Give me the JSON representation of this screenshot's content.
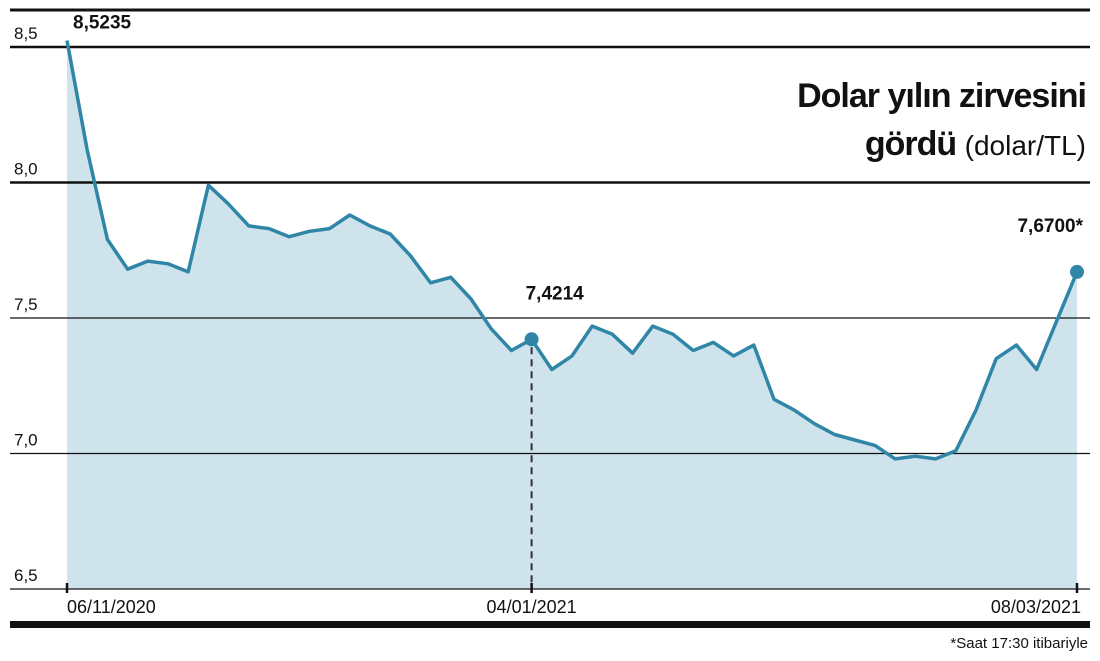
{
  "chart_data": {
    "type": "line",
    "title": "Dolar yılın zirvesini gördü",
    "unit_label": "(dolar/TL)",
    "footnote": "*Saat 17:30 itibariyle",
    "categories": [
      "06/11/2020",
      null,
      null,
      null,
      null,
      null,
      null,
      null,
      null,
      null,
      null,
      null,
      null,
      null,
      null,
      null,
      null,
      null,
      null,
      null,
      null,
      null,
      null,
      "04/01/2021",
      null,
      null,
      null,
      null,
      null,
      null,
      null,
      null,
      null,
      null,
      null,
      null,
      null,
      null,
      null,
      null,
      null,
      null,
      null,
      null,
      null,
      null,
      null,
      null,
      null,
      null,
      "08/03/2021"
    ],
    "series": [
      {
        "name": "Dolar/TL",
        "color": "#2f86a6",
        "values": [
          8.5235,
          8.12,
          7.79,
          7.68,
          7.71,
          7.7,
          7.67,
          7.99,
          7.92,
          7.84,
          7.83,
          7.8,
          7.82,
          7.83,
          7.88,
          7.84,
          7.81,
          7.73,
          7.63,
          7.65,
          7.57,
          7.46,
          7.38,
          7.4214,
          7.31,
          7.36,
          7.47,
          7.44,
          7.37,
          7.47,
          7.44,
          7.38,
          7.41,
          7.36,
          7.4,
          7.2,
          7.16,
          7.11,
          7.07,
          7.05,
          7.03,
          6.98,
          6.99,
          6.98,
          7.01,
          7.16,
          7.35,
          7.4,
          7.31,
          7.49,
          7.67
        ],
        "value_labels": [
          "8,5235",
          null,
          null,
          null,
          null,
          null,
          null,
          null,
          null,
          null,
          null,
          null,
          null,
          null,
          null,
          null,
          null,
          null,
          null,
          null,
          null,
          null,
          null,
          "7,4214",
          null,
          null,
          null,
          null,
          null,
          null,
          null,
          null,
          null,
          null,
          null,
          null,
          null,
          null,
          null,
          null,
          null,
          null,
          null,
          null,
          null,
          null,
          null,
          null,
          null,
          null,
          "7,6700*"
        ]
      }
    ],
    "ylim": [
      6.5,
      8.5
    ],
    "yticks": [
      {
        "value": 8.5,
        "label": "8,5"
      },
      {
        "value": 8.0,
        "label": "8,0"
      },
      {
        "value": 7.5,
        "label": "7,5"
      },
      {
        "value": 7.0,
        "label": "7,0"
      },
      {
        "value": 6.5,
        "label": "6,5"
      }
    ],
    "grid": true,
    "area_color": "#cfe3ec"
  }
}
